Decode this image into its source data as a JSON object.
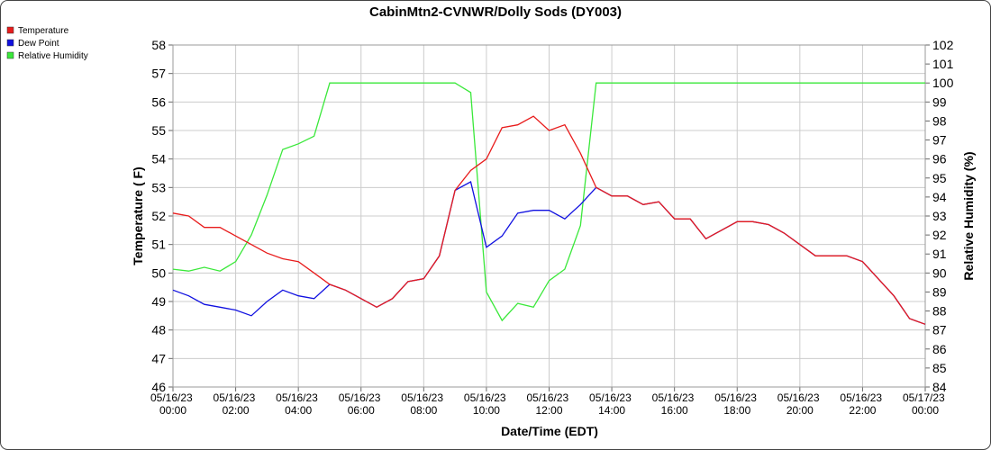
{
  "chart_data": {
    "type": "line",
    "title": "CabinMtn2-CVNWR/Dolly Sods (DY003)",
    "xlabel": "Date/Time (EDT)",
    "ylabel": "Temperature ( F)",
    "y2label": "Relative Humidity (%)",
    "legend": "top-left",
    "grid": true,
    "x": [
      "05/16/23 00:00",
      "05/16/23 00:30",
      "05/16/23 01:00",
      "05/16/23 01:30",
      "05/16/23 02:00",
      "05/16/23 02:30",
      "05/16/23 03:00",
      "05/16/23 03:30",
      "05/16/23 04:00",
      "05/16/23 04:30",
      "05/16/23 05:00",
      "05/16/23 05:30",
      "05/16/23 06:00",
      "05/16/23 06:30",
      "05/16/23 07:00",
      "05/16/23 07:30",
      "05/16/23 08:00",
      "05/16/23 08:30",
      "05/16/23 09:00",
      "05/16/23 09:30",
      "05/16/23 10:00",
      "05/16/23 10:30",
      "05/16/23 11:00",
      "05/16/23 11:30",
      "05/16/23 12:00",
      "05/16/23 12:30",
      "05/16/23 13:00",
      "05/16/23 13:30",
      "05/16/23 14:00",
      "05/16/23 14:30",
      "05/16/23 15:00",
      "05/16/23 15:30",
      "05/16/23 16:00",
      "05/16/23 16:30",
      "05/16/23 17:00",
      "05/16/23 17:30",
      "05/16/23 18:00",
      "05/16/23 18:30",
      "05/16/23 19:00",
      "05/16/23 19:30",
      "05/16/23 20:00",
      "05/16/23 20:30",
      "05/16/23 21:00",
      "05/16/23 21:30",
      "05/16/23 22:00",
      "05/16/23 22:30",
      "05/16/23 23:00",
      "05/16/23 23:30",
      "05/17/23 00:00"
    ],
    "xlim": [
      "05/16/23 00:00",
      "05/17/23 00:00"
    ],
    "xticks": [
      "05/16/23 00:00",
      "05/16/23 02:00",
      "05/16/23 04:00",
      "05/16/23 06:00",
      "05/16/23 08:00",
      "05/16/23 10:00",
      "05/16/23 12:00",
      "05/16/23 14:00",
      "05/16/23 16:00",
      "05/16/23 18:00",
      "05/16/23 20:00",
      "05/16/23 22:00",
      "05/17/23 00:00"
    ],
    "ylim": [
      46,
      58
    ],
    "yticks": [
      46,
      47,
      48,
      49,
      50,
      51,
      52,
      53,
      54,
      55,
      56,
      57,
      58
    ],
    "y2lim": [
      84,
      102
    ],
    "y2ticks": [
      84,
      85,
      86,
      87,
      88,
      89,
      90,
      91,
      92,
      93,
      94,
      95,
      96,
      97,
      98,
      99,
      100,
      101,
      102
    ],
    "series": [
      {
        "name": "Temperature",
        "color": "#e81c1c",
        "values": [
          52.1,
          52.0,
          51.6,
          51.6,
          51.3,
          51.0,
          50.7,
          50.5,
          50.4,
          50.0,
          49.6,
          49.4,
          49.1,
          48.8,
          49.1,
          49.7,
          49.8,
          50.6,
          52.9,
          53.6,
          54.0,
          55.1,
          55.2,
          55.5,
          55.0,
          55.2,
          54.2,
          53.0,
          52.7,
          52.7,
          52.4,
          52.5,
          51.9,
          51.9,
          51.2,
          51.5,
          51.8,
          51.8,
          51.7,
          51.4,
          51.0,
          50.6,
          50.6,
          50.6,
          50.4,
          49.8,
          49.2,
          48.4,
          48.2
        ]
      },
      {
        "name": "Dew Point",
        "color": "#1010e0",
        "values": [
          49.4,
          49.2,
          48.9,
          48.8,
          48.7,
          48.5,
          49.0,
          49.4,
          49.2,
          49.1,
          49.6,
          49.4,
          49.1,
          48.8,
          49.1,
          49.7,
          49.8,
          50.6,
          52.9,
          53.2,
          50.9,
          51.3,
          52.1,
          52.2,
          52.2,
          51.9,
          52.4,
          53.0,
          52.7,
          52.7,
          52.4,
          52.5,
          51.9,
          51.9,
          51.2,
          51.5,
          51.8,
          51.8,
          51.7,
          51.4,
          51.0,
          50.6,
          50.6,
          50.6,
          50.4,
          49.8,
          49.2,
          48.4,
          48.2
        ]
      },
      {
        "name": "Relative Humidity",
        "color": "#3ae83a",
        "axis": "y2",
        "values": [
          90.2,
          90.1,
          90.3,
          90.1,
          90.6,
          92.0,
          94.1,
          96.5,
          96.8,
          97.2,
          100,
          100,
          100,
          100,
          100,
          100,
          100,
          100,
          100,
          99.5,
          89.0,
          87.5,
          88.4,
          88.2,
          89.6,
          90.2,
          92.5,
          100,
          100,
          100,
          100,
          100,
          100,
          100,
          100,
          100,
          100,
          100,
          100,
          100,
          100,
          100,
          100,
          100,
          100,
          100,
          100,
          100,
          100
        ]
      }
    ]
  }
}
